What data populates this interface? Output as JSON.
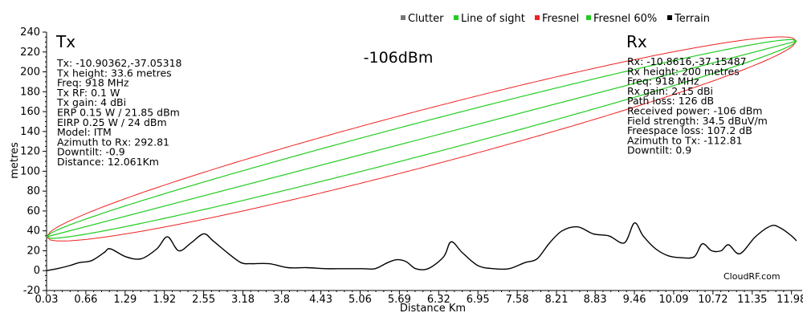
{
  "chart_data": {
    "type": "line",
    "xlabel": "Distance Km",
    "ylabel": "metres",
    "xlim": [
      0.03,
      12.1
    ],
    "ylim": [
      -20,
      240
    ],
    "x_ticks": [
      "0.03",
      "0.66",
      "1.29",
      "1.92",
      "2.55",
      "3.18",
      "3.8",
      "4.43",
      "5.06",
      "5.69",
      "6.32",
      "6.95",
      "7.58",
      "8.21",
      "8.83",
      "9.46",
      "10.09",
      "10.72",
      "11.35",
      "11.98"
    ],
    "y_ticks": [
      -20,
      0,
      20,
      40,
      60,
      80,
      100,
      120,
      140,
      160,
      180,
      200,
      220,
      240
    ],
    "legend": [
      {
        "name": "Clutter",
        "color": "#777777"
      },
      {
        "name": "Line of sight",
        "color": "#22cc22"
      },
      {
        "name": "Fresnel",
        "color": "#ee2222"
      },
      {
        "name": "Fresnel 60%",
        "color": "#22cc22"
      },
      {
        "name": "Terrain",
        "color": "#000000"
      }
    ],
    "line_of_sight": {
      "start": [
        0.03,
        34
      ],
      "end": [
        12.06,
        231
      ]
    },
    "fresnel_zone": {
      "start_y": 34,
      "end_y": 231,
      "max_sag_m": 29,
      "frequency_mhz": 918
    },
    "fresnel_60": {
      "max_sag_m": 17
    },
    "terrain": {
      "x": [
        0.03,
        0.2,
        0.4,
        0.55,
        0.75,
        0.95,
        1.05,
        1.3,
        1.55,
        1.8,
        1.97,
        2.15,
        2.35,
        2.55,
        2.7,
        2.95,
        3.15,
        3.3,
        3.6,
        3.9,
        4.2,
        4.5,
        4.8,
        5.1,
        5.3,
        5.5,
        5.65,
        5.8,
        5.95,
        6.15,
        6.4,
        6.52,
        6.7,
        6.95,
        7.2,
        7.45,
        7.7,
        7.9,
        8.1,
        8.3,
        8.55,
        8.8,
        9.05,
        9.3,
        9.46,
        9.6,
        9.8,
        10.0,
        10.2,
        10.42,
        10.55,
        10.7,
        10.85,
        10.97,
        11.15,
        11.4,
        11.65,
        11.8,
        11.98,
        12.06
      ],
      "y": [
        0,
        2,
        5,
        8,
        10,
        18,
        22,
        14,
        12,
        22,
        34,
        20,
        28,
        37,
        30,
        17,
        8,
        7,
        7,
        3,
        3,
        2,
        2,
        2,
        2,
        8,
        11,
        9,
        2,
        2,
        14,
        29,
        18,
        5,
        2,
        2,
        8,
        12,
        28,
        40,
        44,
        37,
        35,
        28,
        48,
        35,
        22,
        15,
        13,
        14,
        27,
        20,
        20,
        26,
        17,
        34,
        45,
        43,
        35,
        30
      ]
    },
    "tx_label": "Tx",
    "rx_label": "Rx",
    "received_power_label": "-106dBm",
    "tx_info": [
      "Tx: -10.90362,-37.05318",
      "Tx height: 33.6 metres",
      "Freq: 918 MHz",
      "Tx RF: 0.1 W",
      "Tx gain: 4 dBi",
      "ERP 0.15 W / 21.85 dBm",
      "EIRP 0.25 W / 24 dBm",
      "Model: ITM",
      "Azimuth to Rx: 292.81",
      "Downtilt: -0.9",
      "Distance: 12.061Km"
    ],
    "rx_info": [
      "Rx: -10.8616,-37.15487",
      "Rx height: 200 metres",
      "Freq: 918 MHz",
      "Rx gain: 2.15 dBi",
      "Path loss: 126 dB",
      "Received power: -106 dBm",
      "Field strength: 34.5 dBuV/m",
      "Freespace loss: 107.2 dB",
      "Azimuth to Tx: -112.81",
      "Downtilt: 0.9"
    ],
    "brand": "CloudRF.com"
  }
}
